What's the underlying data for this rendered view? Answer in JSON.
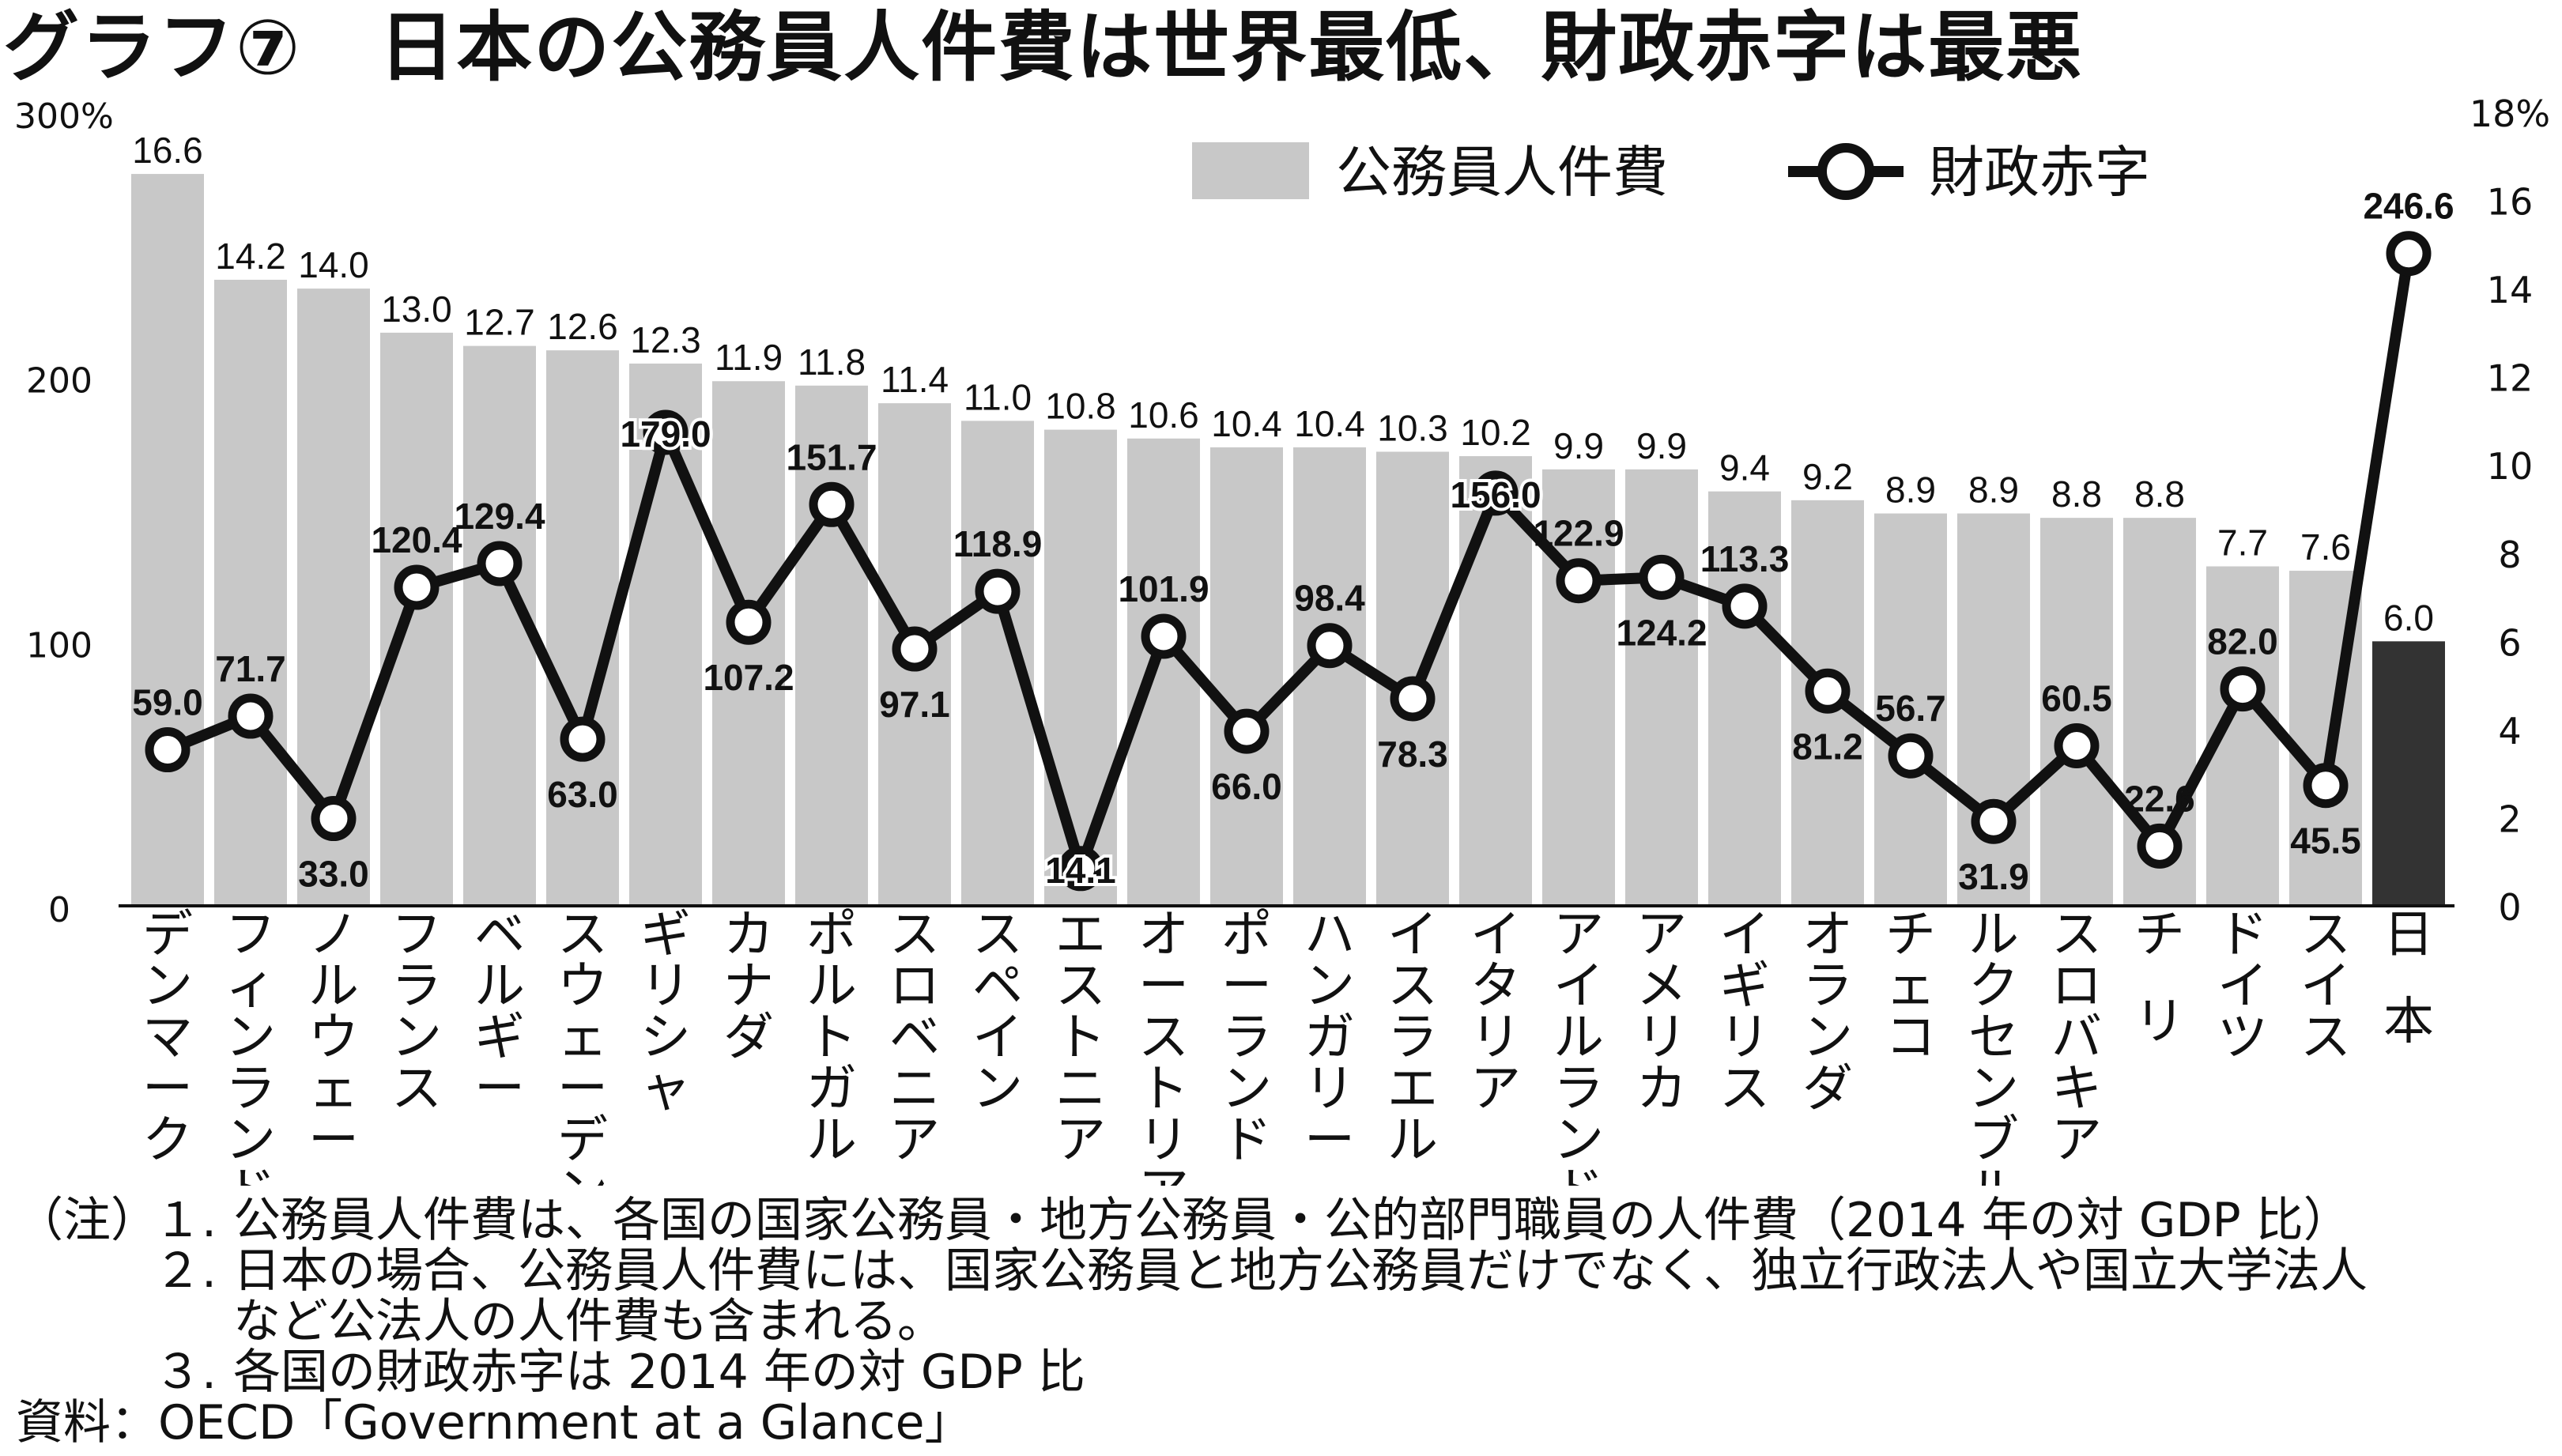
{
  "title": "グラフ⑦　日本の公務員人件費は世界最低、財政赤字は最悪",
  "legend": {
    "bar_label": "公務員人件費",
    "line_label": "財政赤字"
  },
  "colors": {
    "bar": "#c8c8c8",
    "bar_highlight": "#333333",
    "line": "#111111",
    "marker_fill": "#ffffff"
  },
  "chart_data": {
    "type": "bar",
    "categories": [
      "デンマーク",
      "フィンランド",
      "ノルウェー",
      "フランス",
      "ベルギー",
      "スウェーデン",
      "ギリシャ",
      "カナダ",
      "ポルトガル",
      "スロベニア",
      "スペイン",
      "エストニア",
      "オーストリア",
      "ポーランド",
      "ハンガリー",
      "イスラエル",
      "イタリア",
      "アイルランド",
      "アメリカ",
      "イギリス",
      "オランダ",
      "チェコ",
      "ルクセンブルグ",
      "スロバキア",
      "チリ",
      "ドイツ",
      "スイス",
      "日本"
    ],
    "series": [
      {
        "name": "公務員人件費",
        "type": "bar",
        "axis": "right",
        "unit": "%",
        "values": [
          16.6,
          14.2,
          14.0,
          13.0,
          12.7,
          12.6,
          12.3,
          11.9,
          11.8,
          11.4,
          11.0,
          10.8,
          10.6,
          10.4,
          10.4,
          10.3,
          10.2,
          9.9,
          9.9,
          9.4,
          9.2,
          8.9,
          8.9,
          8.8,
          8.8,
          7.7,
          7.6,
          6.0
        ],
        "labels": [
          "16.6",
          "14.2",
          "14.0",
          "13.0",
          "12.7",
          "12.6",
          "12.3",
          "11.9",
          "11.8",
          "11.4",
          "11.0",
          "10.8",
          "10.6",
          "10.4",
          "10.4",
          "10.3",
          "10.2",
          "9.9",
          "9.9",
          "9.4",
          "9.2",
          "8.9",
          "8.9",
          "8.8",
          "8.8",
          "7.7",
          "7.6",
          "6.0"
        ],
        "highlight_index": 27
      },
      {
        "name": "財政赤字",
        "type": "line",
        "axis": "left",
        "unit": "%",
        "values": [
          59.0,
          71.7,
          33.0,
          120.4,
          129.4,
          63.0,
          179.0,
          107.2,
          151.7,
          97.1,
          118.9,
          14.1,
          101.9,
          66.0,
          98.4,
          78.3,
          156.0,
          122.9,
          124.2,
          113.3,
          81.2,
          56.7,
          31.9,
          60.5,
          22.6,
          82.0,
          45.5,
          246.6
        ],
        "labels": [
          "59.0",
          "71.7",
          "33.0",
          "120.4",
          "129.4",
          "63.0",
          "179.0",
          "107.2",
          "151.7",
          "97.1",
          "118.9",
          "14.1",
          "101.9",
          "66.0",
          "98.4",
          "78.3",
          "156.0",
          "122.9",
          "124.2",
          "113.3",
          "81.2",
          "56.7",
          "31.9",
          "60.5",
          "22.6",
          "82.0",
          "45.5",
          "246.6"
        ],
        "label_pos": [
          "above",
          "above",
          "below",
          "above",
          "above",
          "below",
          "on",
          "below",
          "above",
          "below",
          "above",
          "on",
          "above",
          "below",
          "above",
          "below",
          "on",
          "above",
          "below",
          "above",
          "below",
          "above",
          "below",
          "above",
          "above",
          "above",
          "below",
          "above"
        ]
      }
    ],
    "left_axis": {
      "ylim": [
        0,
        300
      ],
      "ticks": [
        "0",
        "100",
        "200",
        "300%"
      ],
      "tick_values": [
        0,
        100,
        200,
        300
      ]
    },
    "right_axis": {
      "ylim": [
        0,
        18
      ],
      "ticks": [
        "0",
        "2",
        "4",
        "6",
        "8",
        "10",
        "12",
        "14",
        "16",
        "18%"
      ],
      "tick_values": [
        0,
        2,
        4,
        6,
        8,
        10,
        12,
        14,
        16,
        18
      ]
    },
    "legend_position": "top-right",
    "grid": false
  },
  "notes": {
    "prefix": "（注）",
    "items": [
      {
        "num": "１.",
        "text": "公務員人件費は、各国の国家公務員・地方公務員・公的部門職員の人件費（2014 年の対 GDP 比）"
      },
      {
        "num": "２.",
        "text": "日本の場合、公務員人件費には、国家公務員と地方公務員だけでなく、独立行政法人や国立大学法人"
      },
      {
        "num": "",
        "text": "など公法人の人件費も含まれる。"
      },
      {
        "num": "３.",
        "text": "各国の財政赤字は 2014 年の対 GDP 比"
      }
    ],
    "source": "資料：OECD「Government at a Glance」"
  }
}
